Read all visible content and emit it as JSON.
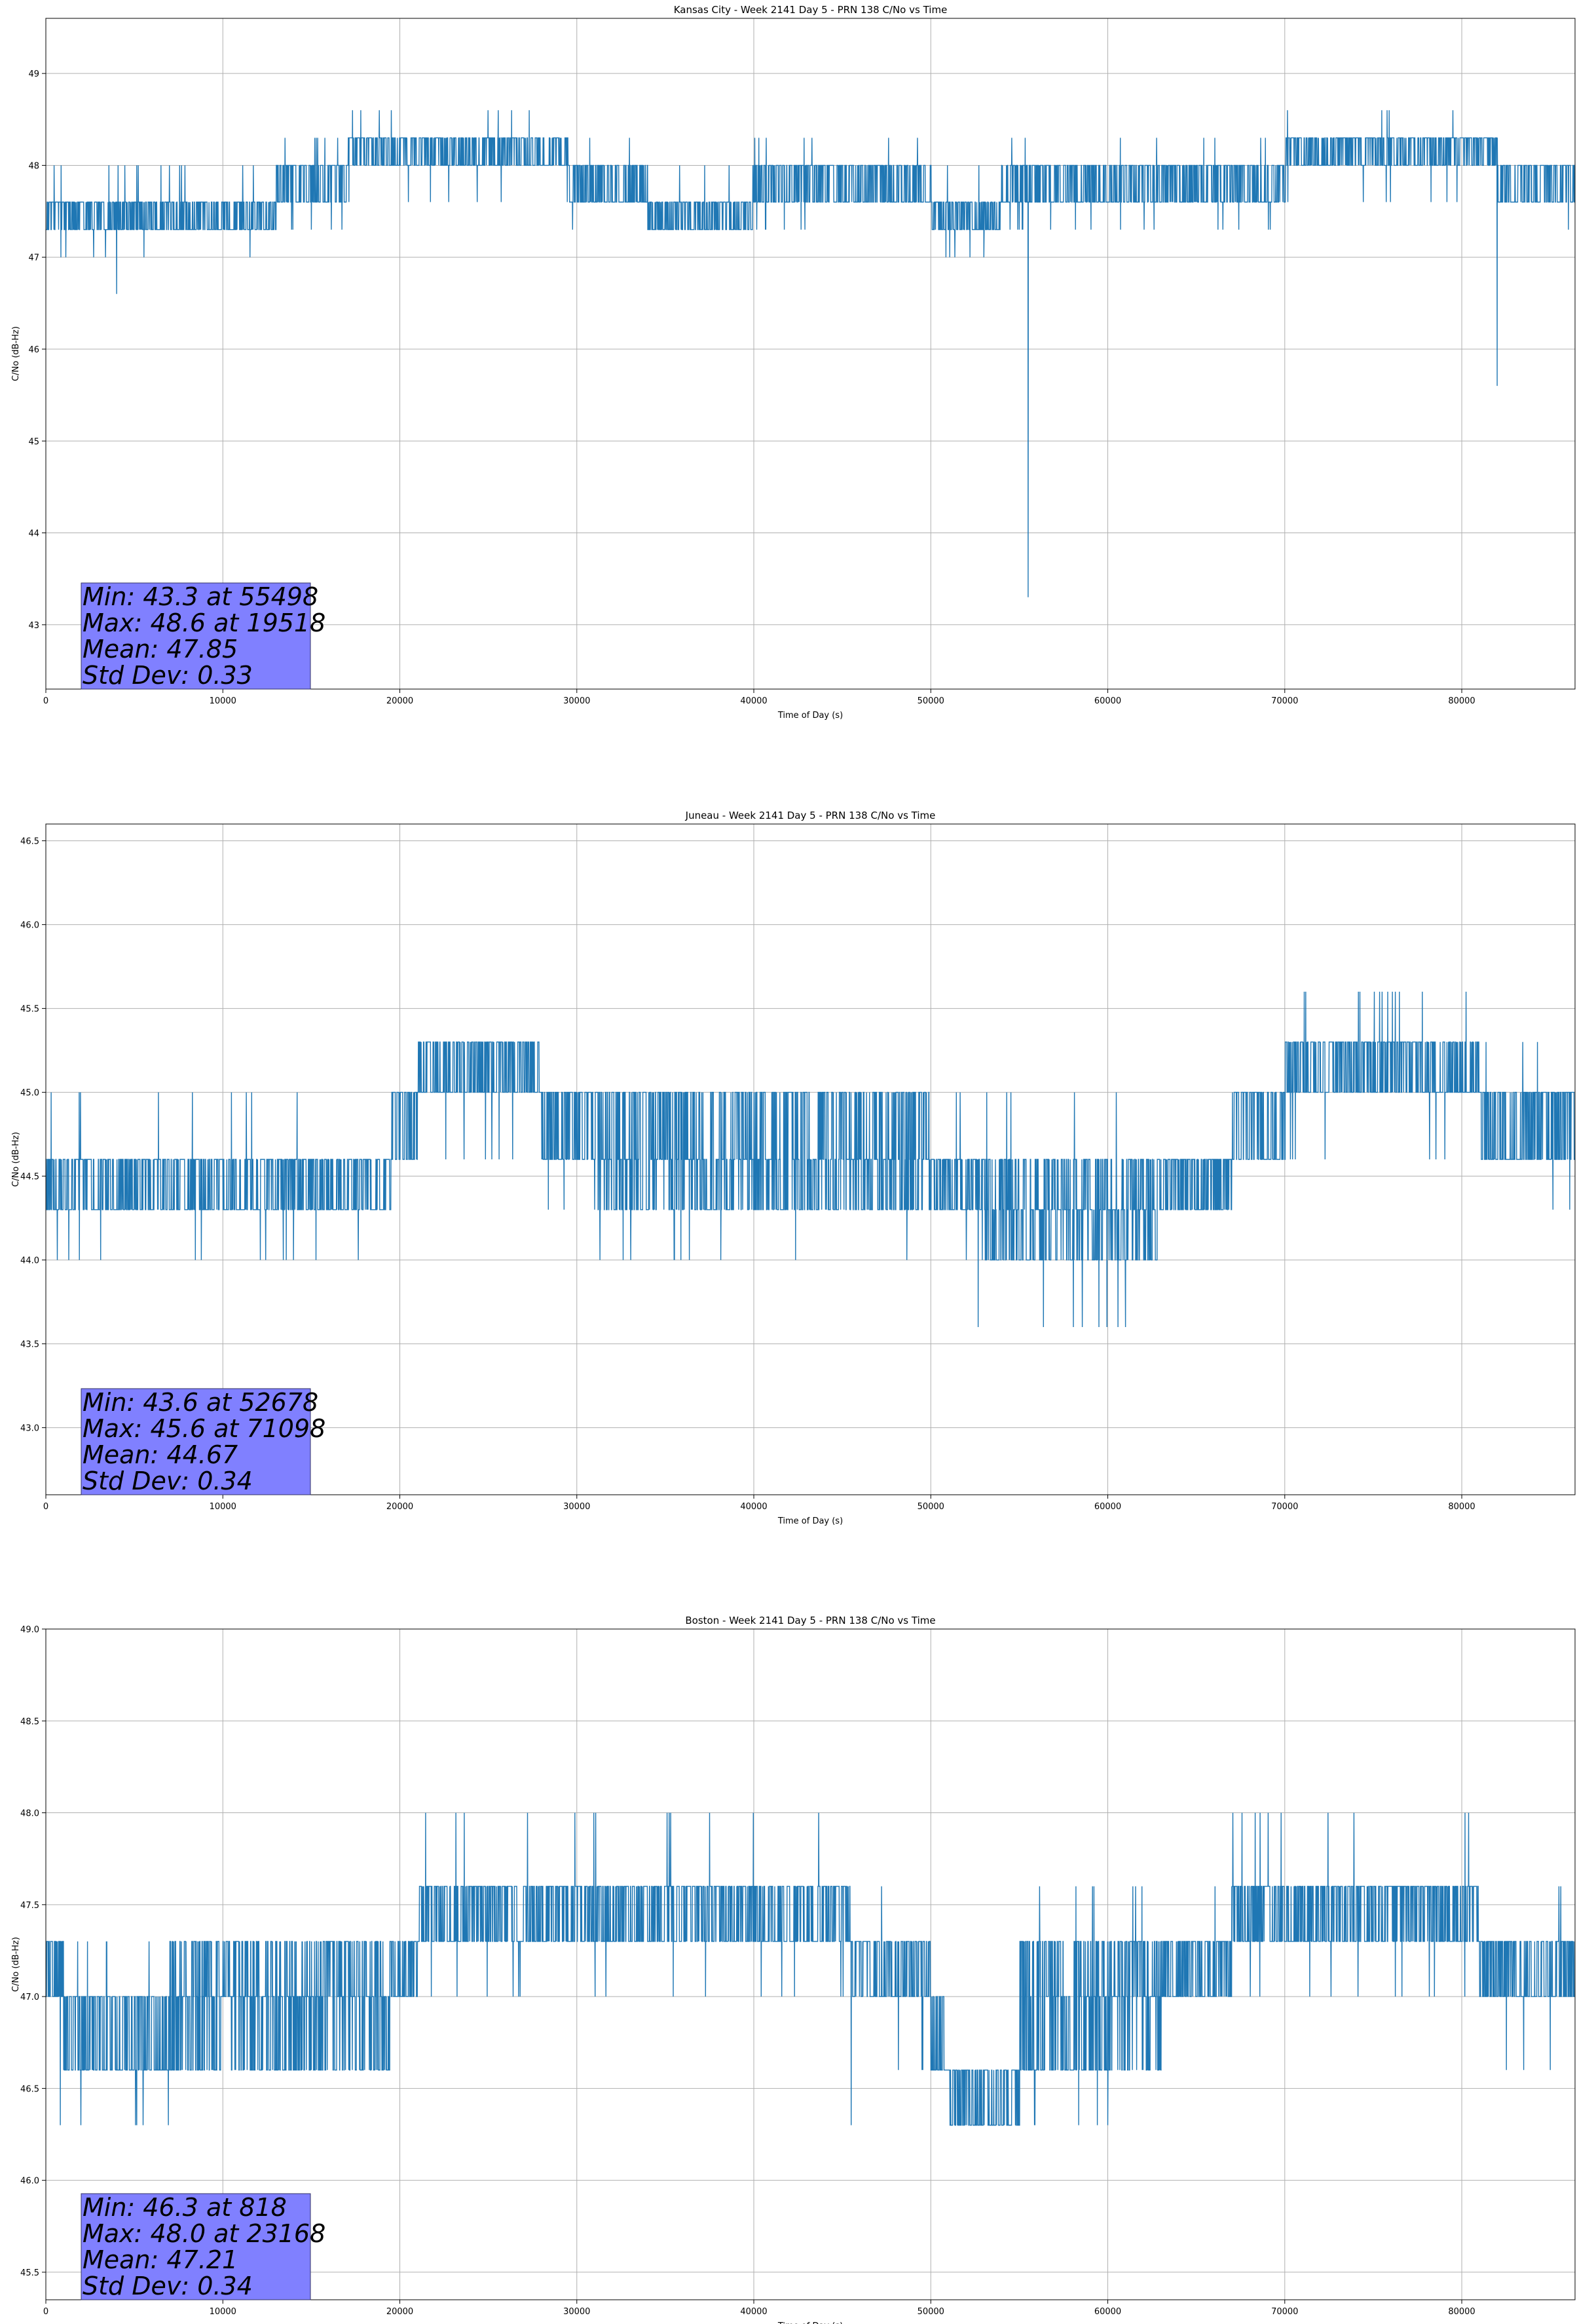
{
  "colors": {
    "series": "#1f77b4",
    "grid": "#b0b0b0",
    "stats_box_fill": "#8080ff",
    "stats_box_edge": "#333366",
    "axes": "#000000"
  },
  "chart_data": [
    {
      "type": "line",
      "title": "Kansas City - Week 2141 Day 5 - PRN 138 C/No vs Time",
      "xlabel": "Time of Day (s)",
      "ylabel": "C/No (dB-Hz)",
      "xlim": [
        0,
        86400
      ],
      "ylim": [
        42.3,
        49.6
      ],
      "xticks": [
        0,
        10000,
        20000,
        30000,
        40000,
        50000,
        60000,
        70000,
        80000
      ],
      "yticks": [
        43,
        44,
        45,
        46,
        47,
        48,
        49
      ],
      "ytick_decimals": 0,
      "grid": true,
      "legend": "none",
      "stats": {
        "min": "Min: 43.3 at 55498",
        "max": "Max: 48.6 at 19518",
        "mean": "Mean: 47.85",
        "std": "Std Dev: 0.33"
      },
      "quantization_step": 0.3,
      "segments": [
        {
          "x": [
            0,
            13000
          ],
          "levels": [
            47.3,
            47.6
          ],
          "noise": [
            47.0,
            48.0
          ]
        },
        {
          "x": [
            13000,
            17000
          ],
          "levels": [
            47.6,
            48.0
          ],
          "noise": [
            47.3,
            48.3
          ]
        },
        {
          "x": [
            17000,
            22000
          ],
          "levels": [
            48.0,
            48.3
          ],
          "noise": [
            47.6,
            48.6
          ]
        },
        {
          "x": [
            22000,
            27000
          ],
          "levels": [
            48.0,
            48.3
          ],
          "noise": [
            47.6,
            48.6
          ]
        },
        {
          "x": [
            27000,
            29500
          ],
          "levels": [
            48.0,
            48.3
          ],
          "noise": [
            47.6,
            48.6
          ]
        },
        {
          "x": [
            29500,
            34000
          ],
          "levels": [
            47.6,
            48.0
          ],
          "noise": [
            47.3,
            48.3
          ]
        },
        {
          "x": [
            34000,
            40000
          ],
          "levels": [
            47.3,
            47.6
          ],
          "noise": [
            47.3,
            48.0
          ]
        },
        {
          "x": [
            40000,
            50000
          ],
          "levels": [
            47.6,
            48.0
          ],
          "noise": [
            47.3,
            48.3
          ]
        },
        {
          "x": [
            50000,
            54000
          ],
          "levels": [
            47.3,
            47.6
          ],
          "noise": [
            47.0,
            48.0
          ]
        },
        {
          "x": [
            54000,
            70000
          ],
          "levels": [
            47.6,
            48.0
          ],
          "noise": [
            47.3,
            48.3
          ]
        },
        {
          "x": [
            70000,
            75000
          ],
          "levels": [
            48.0,
            48.3
          ],
          "noise": [
            47.6,
            48.6
          ]
        },
        {
          "x": [
            75000,
            80500
          ],
          "levels": [
            48.0,
            48.3
          ],
          "noise": [
            47.6,
            48.6
          ]
        },
        {
          "x": [
            80500,
            82000
          ],
          "levels": [
            48.0,
            48.3
          ],
          "noise": [
            47.3,
            48.3
          ]
        },
        {
          "x": [
            82000,
            86400
          ],
          "levels": [
            47.6,
            48.0
          ],
          "noise": [
            47.3,
            48.0
          ]
        }
      ],
      "spikes": [
        {
          "x": 55498,
          "y": 43.3
        },
        {
          "x": 82000,
          "y": 45.6
        },
        {
          "x": 4000,
          "y": 46.6
        },
        {
          "x": 53000,
          "y": 47.0
        },
        {
          "x": 19518,
          "y": 48.6
        }
      ]
    },
    {
      "type": "line",
      "title": "Juneau - Week 2141 Day 5 - PRN 138 C/No vs Time",
      "xlabel": "Time of Day (s)",
      "ylabel": "C/No (dB-Hz)",
      "xlim": [
        0,
        86400
      ],
      "ylim": [
        42.6,
        46.6
      ],
      "xticks": [
        0,
        10000,
        20000,
        30000,
        40000,
        50000,
        60000,
        70000,
        80000
      ],
      "yticks": [
        43.0,
        43.5,
        44.0,
        44.5,
        45.0,
        45.5,
        46.0,
        46.5
      ],
      "ytick_decimals": 1,
      "grid": true,
      "legend": "none",
      "stats": {
        "min": "Min: 43.6 at 52678",
        "max": "Max: 45.6 at 71098",
        "mean": "Mean: 44.67",
        "std": "Std Dev: 0.34"
      },
      "quantization_step": 0.3,
      "segments": [
        {
          "x": [
            0,
            19500
          ],
          "levels": [
            44.3,
            44.6
          ],
          "noise": [
            44.0,
            45.0
          ]
        },
        {
          "x": [
            19500,
            21000
          ],
          "levels": [
            44.6,
            45.0
          ],
          "noise": [
            44.3,
            45.3
          ]
        },
        {
          "x": [
            21000,
            28000
          ],
          "levels": [
            45.0,
            45.3
          ],
          "noise": [
            44.6,
            45.3
          ]
        },
        {
          "x": [
            28000,
            31000
          ],
          "levels": [
            44.6,
            45.0
          ],
          "noise": [
            44.3,
            45.0
          ]
        },
        {
          "x": [
            31000,
            50000
          ],
          "levels": [
            44.3,
            44.6,
            45.0
          ],
          "noise": [
            44.0,
            45.0
          ]
        },
        {
          "x": [
            50000,
            53000
          ],
          "levels": [
            44.3,
            44.6
          ],
          "noise": [
            44.0,
            45.0
          ]
        },
        {
          "x": [
            53000,
            63000
          ],
          "levels": [
            44.0,
            44.3,
            44.6
          ],
          "noise": [
            43.6,
            45.0
          ]
        },
        {
          "x": [
            63000,
            67000
          ],
          "levels": [
            44.3,
            44.6
          ],
          "noise": [
            44.3,
            45.0
          ]
        },
        {
          "x": [
            67000,
            70000
          ],
          "levels": [
            44.6,
            45.0
          ],
          "noise": [
            44.3,
            45.0
          ]
        },
        {
          "x": [
            70000,
            81000
          ],
          "levels": [
            45.0,
            45.3
          ],
          "noise": [
            44.6,
            45.6
          ]
        },
        {
          "x": [
            81000,
            86400
          ],
          "levels": [
            44.6,
            45.0
          ],
          "noise": [
            44.3,
            45.3
          ]
        }
      ],
      "spikes": [
        {
          "x": 52678,
          "y": 43.6
        },
        {
          "x": 71098,
          "y": 45.6
        },
        {
          "x": 59500,
          "y": 43.6
        },
        {
          "x": 61000,
          "y": 43.6
        },
        {
          "x": 75500,
          "y": 45.6
        }
      ]
    },
    {
      "type": "line",
      "title": "Boston - Week 2141 Day 5 - PRN 138 C/No vs Time",
      "xlabel": "Time of Day (s)",
      "ylabel": "C/No (dB-Hz)",
      "xlim": [
        0,
        86400
      ],
      "ylim": [
        45.35,
        49.0
      ],
      "xticks": [
        0,
        10000,
        20000,
        30000,
        40000,
        50000,
        60000,
        70000,
        80000
      ],
      "yticks": [
        45.5,
        46.0,
        46.5,
        47.0,
        47.5,
        48.0,
        48.5,
        49.0
      ],
      "ytick_decimals": 1,
      "grid": true,
      "legend": "none",
      "stats": {
        "min": "Min: 46.3 at 818",
        "max": "Max: 48.0 at 23168",
        "mean": "Mean: 47.21",
        "std": "Std Dev: 0.34"
      },
      "quantization_step": 0.3,
      "segments": [
        {
          "x": [
            0,
            1000
          ],
          "levels": [
            47.0,
            47.3
          ],
          "noise": [
            46.6,
            47.3
          ]
        },
        {
          "x": [
            1000,
            7000
          ],
          "levels": [
            46.6,
            47.0
          ],
          "noise": [
            46.3,
            47.3
          ]
        },
        {
          "x": [
            7000,
            19500
          ],
          "levels": [
            46.6,
            47.0,
            47.3
          ],
          "noise": [
            46.6,
            47.3
          ]
        },
        {
          "x": [
            19500,
            21000
          ],
          "levels": [
            47.0,
            47.3
          ],
          "noise": [
            47.0,
            47.6
          ]
        },
        {
          "x": [
            21000,
            45500
          ],
          "levels": [
            47.3,
            47.6
          ],
          "noise": [
            47.0,
            48.0
          ]
        },
        {
          "x": [
            45500,
            50000
          ],
          "levels": [
            47.0,
            47.3
          ],
          "noise": [
            46.6,
            47.6
          ]
        },
        {
          "x": [
            50000,
            51000
          ],
          "levels": [
            46.6,
            47.0
          ],
          "noise": [
            46.3,
            47.0
          ]
        },
        {
          "x": [
            51000,
            55000
          ],
          "levels": [
            46.3,
            46.6
          ],
          "noise": [
            46.3,
            47.0
          ]
        },
        {
          "x": [
            55000,
            63000
          ],
          "levels": [
            46.6,
            47.0,
            47.3
          ],
          "noise": [
            46.3,
            47.6
          ]
        },
        {
          "x": [
            63000,
            67000
          ],
          "levels": [
            47.0,
            47.3
          ],
          "noise": [
            47.0,
            47.6
          ]
        },
        {
          "x": [
            67000,
            81000
          ],
          "levels": [
            47.3,
            47.6
          ],
          "noise": [
            47.0,
            48.0
          ]
        },
        {
          "x": [
            81000,
            86400
          ],
          "levels": [
            47.0,
            47.3
          ],
          "noise": [
            46.6,
            47.6
          ]
        }
      ],
      "spikes": [
        {
          "x": 818,
          "y": 46.3
        },
        {
          "x": 23168,
          "y": 48.0
        },
        {
          "x": 45500,
          "y": 46.3
        },
        {
          "x": 60000,
          "y": 46.3
        },
        {
          "x": 83500,
          "y": 46.6
        },
        {
          "x": 85000,
          "y": 46.6
        }
      ]
    }
  ]
}
